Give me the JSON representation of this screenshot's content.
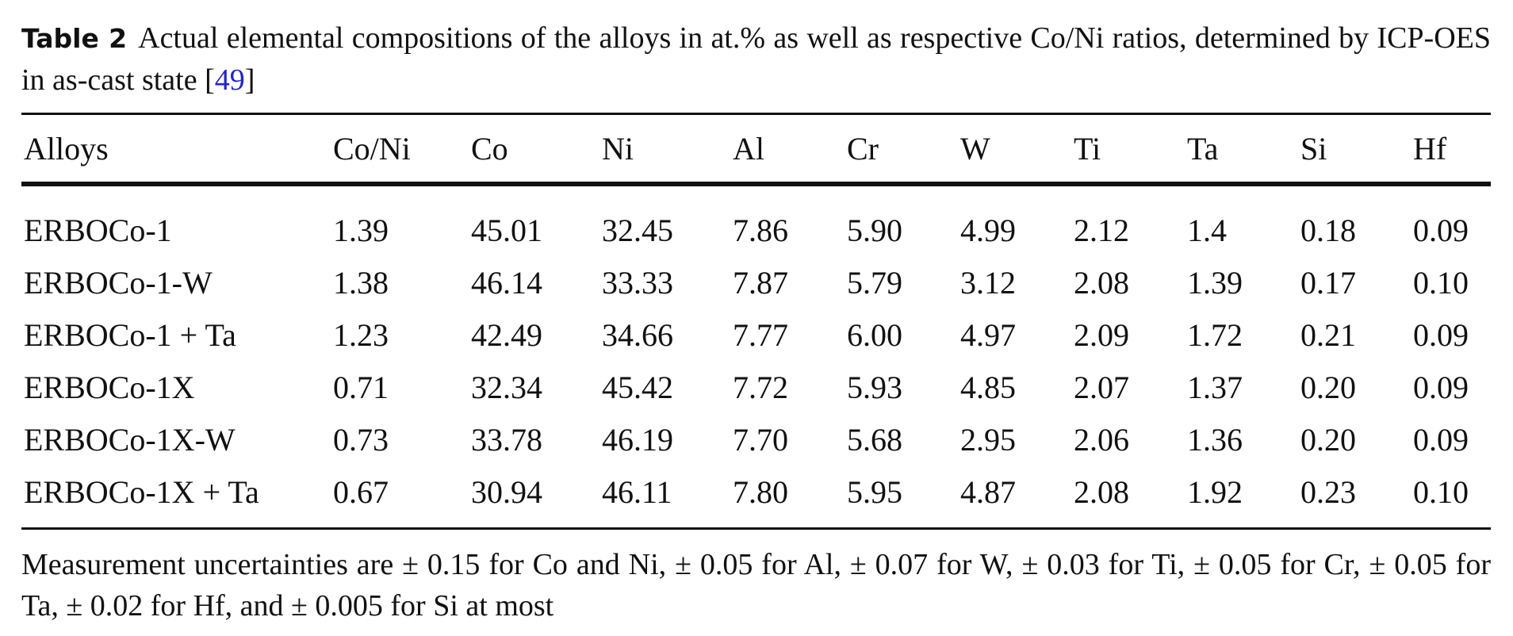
{
  "caption": {
    "label": "Table 2",
    "text": "Actual elemental compositions of the alloys in at.% as well as respective Co/Ni ratios, determined by ICP-OES in as-cast state [",
    "ref": "49",
    "suffix": "]"
  },
  "table": {
    "header": [
      "Alloys",
      "Co/Ni",
      "Co",
      "Ni",
      "Al",
      "Cr",
      "W",
      "Ti",
      "Ta",
      "Si",
      "Hf"
    ],
    "rows": [
      [
        "ERBOCo-1",
        "1.39",
        "45.01",
        "32.45",
        "7.86",
        "5.90",
        "4.99",
        "2.12",
        "1.4",
        "0.18",
        "0.09"
      ],
      [
        "ERBOCo-1-W",
        "1.38",
        "46.14",
        "33.33",
        "7.87",
        "5.79",
        "3.12",
        "2.08",
        "1.39",
        "0.17",
        "0.10"
      ],
      [
        "ERBOCo-1 + Ta",
        "1.23",
        "42.49",
        "34.66",
        "7.77",
        "6.00",
        "4.97",
        "2.09",
        "1.72",
        "0.21",
        "0.09"
      ],
      [
        "ERBOCo-1X",
        "0.71",
        "32.34",
        "45.42",
        "7.72",
        "5.93",
        "4.85",
        "2.07",
        "1.37",
        "0.20",
        "0.09"
      ],
      [
        "ERBOCo-1X-W",
        "0.73",
        "33.78",
        "46.19",
        "7.70",
        "5.68",
        "2.95",
        "2.06",
        "1.36",
        "0.20",
        "0.09"
      ],
      [
        "ERBOCo-1X + Ta",
        "0.67",
        "30.94",
        "46.11",
        "7.80",
        "5.95",
        "4.87",
        "2.08",
        "1.92",
        "0.23",
        "0.10"
      ]
    ]
  },
  "footnote": "Measurement uncertainties are ± 0.15 for Co and Ni, ± 0.05 for Al, ± 0.07 for W, ± 0.03 for Ti, ± 0.05 for Cr, ± 0.05 for Ta, ± 0.02 for Hf, and ± 0.005 for Si at most"
}
